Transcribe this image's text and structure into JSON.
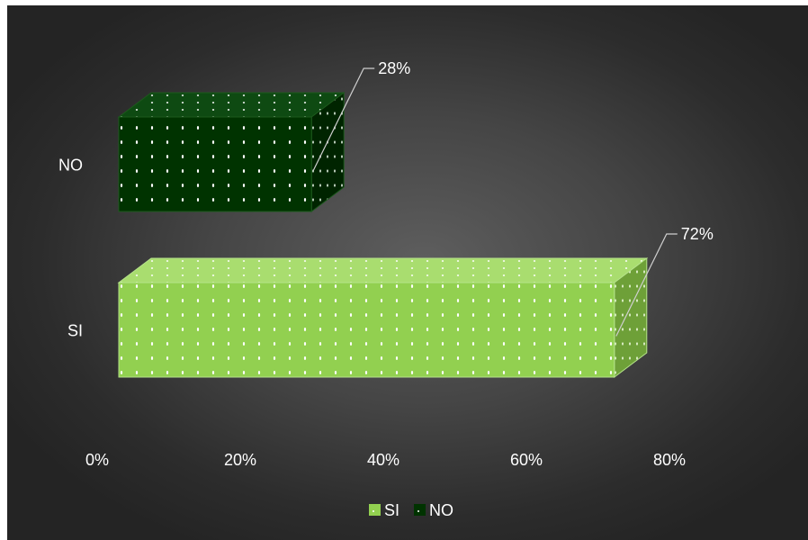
{
  "chart_data": {
    "type": "bar",
    "orientation": "horizontal",
    "style": "3d-bar",
    "categories": [
      "SI",
      "NO"
    ],
    "values": [
      72,
      28
    ],
    "data_labels": [
      "72%",
      "28%"
    ],
    "colors": [
      "#92d050",
      "#003300"
    ],
    "xlim": [
      0,
      80
    ],
    "xticks": [
      "0%",
      "20%",
      "40%",
      "60%",
      "80%"
    ],
    "legend": {
      "position": "bottom",
      "entries": [
        {
          "label": "SI",
          "color": "#92d050"
        },
        {
          "label": "NO",
          "color": "#003300"
        }
      ]
    },
    "grid": false,
    "background": "#444444"
  }
}
